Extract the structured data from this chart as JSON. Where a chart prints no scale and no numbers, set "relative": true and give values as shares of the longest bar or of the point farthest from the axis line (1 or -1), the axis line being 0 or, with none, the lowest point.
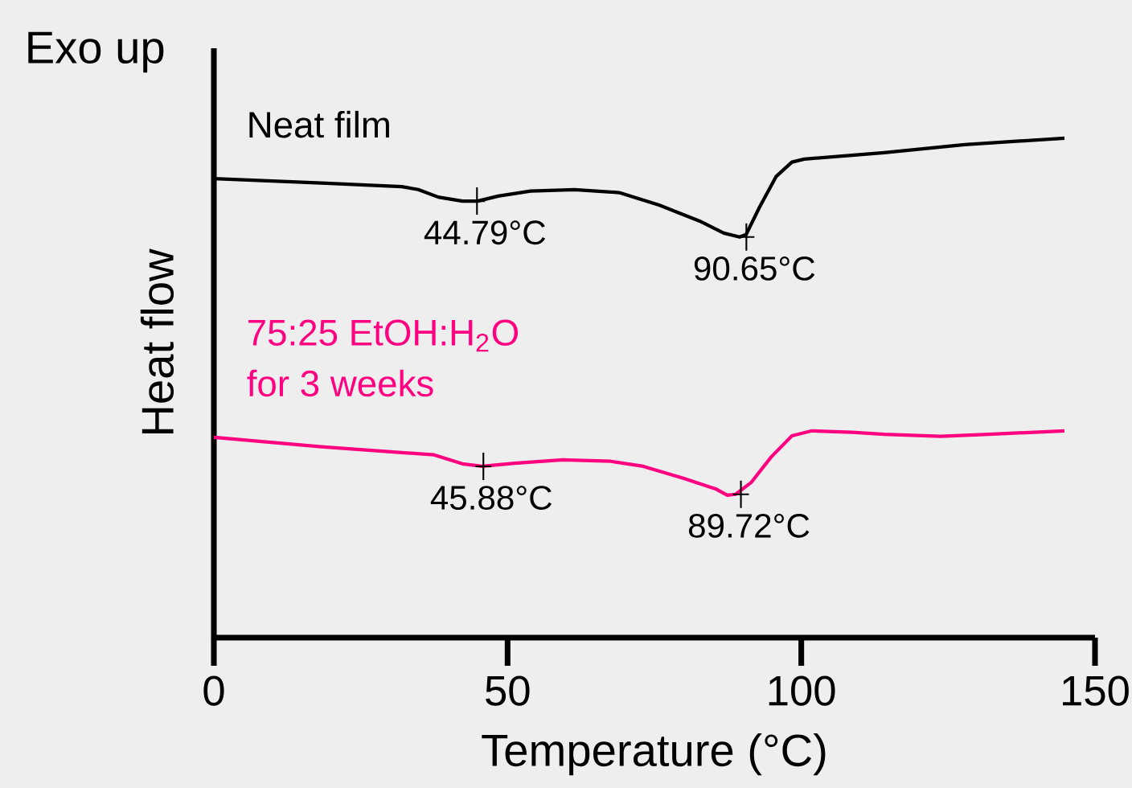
{
  "chart_data": {
    "type": "line",
    "relative": true,
    "xlabel": "Temperature (°C)",
    "ylabel": "Heat flow",
    "xlim": [
      0,
      150
    ],
    "xticks": [
      0,
      50,
      100,
      150
    ],
    "tick_labels": "x",
    "line_style": "solid",
    "marker": "none",
    "series": [
      {
        "name": "Neat film",
        "color": "#000000",
        "x": [
          0,
          18.3,
          32.0,
          34.8,
          38.2,
          42.3,
          44.9,
          48.4,
          53.9,
          61.4,
          69.0,
          75.8,
          82.7,
          86.8,
          89.5,
          90.6,
          92.9,
          95.7,
          98.4,
          100.5,
          114.1,
          127.8,
          144.8
        ],
        "values": [
          0.919,
          0.91,
          0.903,
          0.897,
          0.882,
          0.874,
          0.874,
          0.884,
          0.894,
          0.897,
          0.891,
          0.866,
          0.834,
          0.81,
          0.802,
          0.807,
          0.862,
          0.923,
          0.952,
          0.958,
          0.971,
          0.987,
          1.0
        ]
      },
      {
        "name": "75:25 EtOH:H$_{2}$O for 3 weeks",
        "color": "#ff0080",
        "x": [
          0,
          18.3,
          37.5,
          42.3,
          45.7,
          51.2,
          59.4,
          67.6,
          73.1,
          79.9,
          85.4,
          87.4,
          88.8,
          91.5,
          94.9,
          98.4,
          101.8,
          108.7,
          114.1,
          123.7,
          131.9,
          144.8
        ],
        "values": [
          0.401,
          0.382,
          0.366,
          0.348,
          0.343,
          0.349,
          0.356,
          0.353,
          0.343,
          0.319,
          0.298,
          0.285,
          0.287,
          0.311,
          0.362,
          0.404,
          0.414,
          0.411,
          0.407,
          0.403,
          0.407,
          0.414
        ]
      }
    ],
    "annotations": [
      "Exo up",
      {
        "text": "44.79°C",
        "x": 44.79,
        "y": 0.874
      },
      {
        "text": "90.65°C",
        "x": 90.65,
        "y": 0.802
      },
      {
        "text": "45.88°C",
        "x": 45.88,
        "y": 0.343
      },
      {
        "text": "89.72°C",
        "x": 89.72,
        "y": 0.287
      }
    ]
  }
}
